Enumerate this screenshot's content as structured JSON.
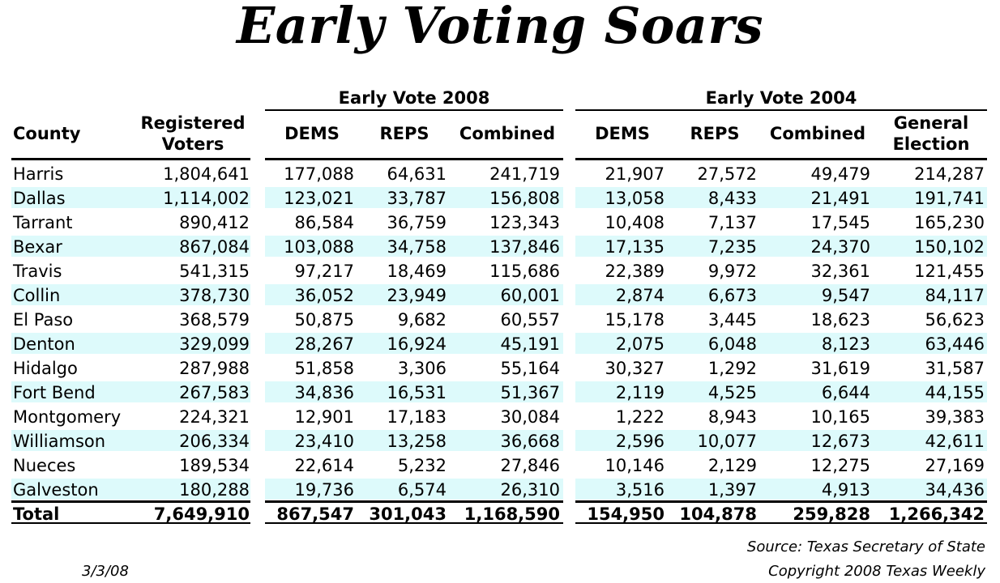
{
  "chart_data": {
    "type": "table",
    "title": "Early Voting Soars",
    "groups": [
      "Early Vote 2008",
      "Early Vote 2004"
    ],
    "columns": [
      "County",
      "Registered Voters",
      "DEMS",
      "REPS",
      "Combined",
      "DEMS",
      "REPS",
      "Combined",
      "General Election"
    ],
    "rows": [
      [
        "Harris",
        "1,804,641",
        "177,088",
        "64,631",
        "241,719",
        "21,907",
        "27,572",
        "49,479",
        "214,287"
      ],
      [
        "Dallas",
        "1,114,002",
        "123,021",
        "33,787",
        "156,808",
        "13,058",
        "8,433",
        "21,491",
        "191,741"
      ],
      [
        "Tarrant",
        "890,412",
        "86,584",
        "36,759",
        "123,343",
        "10,408",
        "7,137",
        "17,545",
        "165,230"
      ],
      [
        "Bexar",
        "867,084",
        "103,088",
        "34,758",
        "137,846",
        "17,135",
        "7,235",
        "24,370",
        "150,102"
      ],
      [
        "Travis",
        "541,315",
        "97,217",
        "18,469",
        "115,686",
        "22,389",
        "9,972",
        "32,361",
        "121,455"
      ],
      [
        "Collin",
        "378,730",
        "36,052",
        "23,949",
        "60,001",
        "2,874",
        "6,673",
        "9,547",
        "84,117"
      ],
      [
        "El Paso",
        "368,579",
        "50,875",
        "9,682",
        "60,557",
        "15,178",
        "3,445",
        "18,623",
        "56,623"
      ],
      [
        "Denton",
        "329,099",
        "28,267",
        "16,924",
        "45,191",
        "2,075",
        "6,048",
        "8,123",
        "63,446"
      ],
      [
        "Hidalgo",
        "287,988",
        "51,858",
        "3,306",
        "55,164",
        "30,327",
        "1,292",
        "31,619",
        "31,587"
      ],
      [
        "Fort Bend",
        "267,583",
        "34,836",
        "16,531",
        "51,367",
        "2,119",
        "4,525",
        "6,644",
        "44,155"
      ],
      [
        "Montgomery",
        "224,321",
        "12,901",
        "17,183",
        "30,084",
        "1,222",
        "8,943",
        "10,165",
        "39,383"
      ],
      [
        "Williamson",
        "206,334",
        "23,410",
        "13,258",
        "36,668",
        "2,596",
        "10,077",
        "12,673",
        "42,611"
      ],
      [
        "Nueces",
        "189,534",
        "22,614",
        "5,232",
        "27,846",
        "10,146",
        "2,129",
        "12,275",
        "27,169"
      ],
      [
        "Galveston",
        "180,288",
        "19,736",
        "6,574",
        "26,310",
        "3,516",
        "1,397",
        "4,913",
        "34,436"
      ]
    ],
    "total": [
      "Total",
      "7,649,910",
      "867,547",
      "301,043",
      "1,168,590",
      "154,950",
      "104,878",
      "259,828",
      "1,266,342"
    ],
    "stripe_color": "#ddfafb"
  },
  "footer": {
    "date": "3/3/08",
    "source": "Source: Texas Secretary of State",
    "copyright": "Copyright 2008 Texas Weekly"
  }
}
